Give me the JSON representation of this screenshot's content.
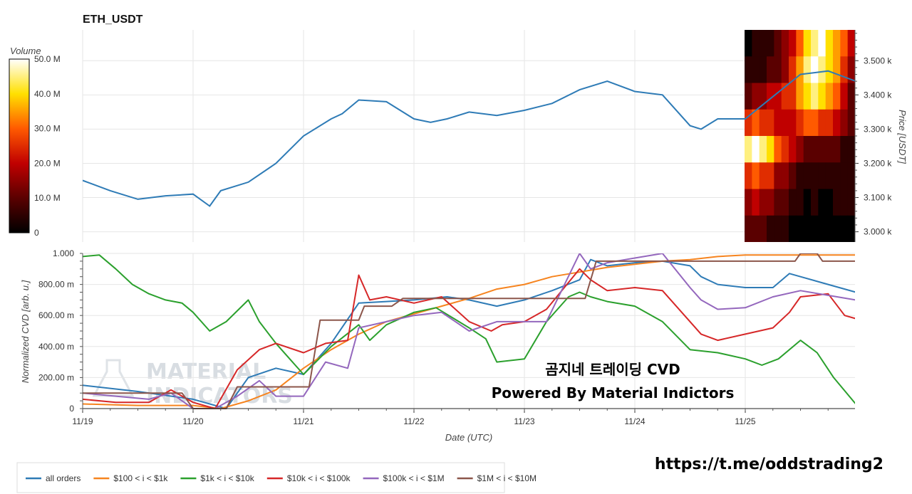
{
  "chart_data": [
    {
      "type": "line",
      "title": "ETH_USDT",
      "ylabel": "Price [USDT]",
      "ylim": [
        2970,
        3590
      ],
      "yticks": [
        "3.000 k",
        "3.100 k",
        "3.200 k",
        "3.300 k",
        "3.400 k",
        "3.500 k"
      ],
      "yticks_values": [
        3000,
        3100,
        3200,
        3300,
        3400,
        3500
      ],
      "xlim": [
        0,
        7
      ],
      "grid": true,
      "series": [
        {
          "color": "#2e7bb6",
          "x": [
            0,
            0.25,
            0.5,
            0.75,
            1,
            1.15,
            1.25,
            1.5,
            1.75,
            2,
            2.25,
            2.35,
            2.5,
            2.75,
            3,
            3.15,
            3.3,
            3.5,
            3.75,
            4,
            4.25,
            4.5,
            4.75,
            5,
            5.25,
            5.5,
            5.6,
            5.75,
            6,
            6.25,
            6.5,
            6.75,
            7
          ],
          "y": [
            3150,
            3120,
            3095,
            3105,
            3110,
            3075,
            3120,
            3145,
            3200,
            3280,
            3330,
            3345,
            3385,
            3380,
            3330,
            3320,
            3330,
            3350,
            3340,
            3355,
            3375,
            3415,
            3440,
            3410,
            3400,
            3310,
            3300,
            3330,
            3330,
            3395,
            3460,
            3470,
            3440
          ]
        }
      ]
    },
    {
      "type": "heatmap",
      "colorbar_label": "Volume",
      "colorbar_ticks": [
        "0",
        "10.0 M",
        "20.0 M",
        "30.0 M",
        "40.0 M",
        "50.0 M"
      ],
      "colorbar_values": [
        0,
        10,
        20,
        30,
        40,
        50
      ],
      "intensity": [
        [
          0.0,
          0.1,
          0.1,
          0.1,
          0.2,
          0.3,
          0.4,
          0.6,
          0.8,
          0.9,
          1.0,
          0.8,
          0.7,
          0.6,
          0.4
        ],
        [
          0.1,
          0.1,
          0.1,
          0.2,
          0.2,
          0.3,
          0.5,
          0.7,
          0.9,
          1.0,
          0.9,
          0.8,
          0.7,
          0.5,
          0.3
        ],
        [
          0.2,
          0.3,
          0.3,
          0.4,
          0.4,
          0.5,
          0.5,
          0.7,
          0.8,
          0.9,
          0.8,
          0.7,
          0.6,
          0.4,
          0.2
        ],
        [
          0.5,
          0.6,
          0.5,
          0.5,
          0.4,
          0.4,
          0.4,
          0.5,
          0.6,
          0.6,
          0.5,
          0.5,
          0.4,
          0.3,
          0.2
        ],
        [
          0.9,
          1.0,
          0.9,
          0.8,
          0.6,
          0.5,
          0.4,
          0.3,
          0.2,
          0.2,
          0.2,
          0.2,
          0.2,
          0.1,
          0.1
        ],
        [
          0.5,
          0.6,
          0.5,
          0.5,
          0.3,
          0.3,
          0.2,
          0.1,
          0.1,
          0.1,
          0.1,
          0.1,
          0.1,
          0.1,
          0.1
        ],
        [
          0.3,
          0.4,
          0.3,
          0.3,
          0.2,
          0.2,
          0.1,
          0.1,
          0.0,
          0.1,
          0.0,
          0.0,
          0.1,
          0.1,
          0.1
        ],
        [
          0.2,
          0.2,
          0.2,
          0.1,
          0.1,
          0.1,
          0.0,
          0.0,
          0.0,
          0.0,
          0.0,
          0.0,
          0.0,
          0.0,
          0.0
        ]
      ]
    },
    {
      "type": "line",
      "xlabel": "Date (UTC)",
      "ylabel": "Normalized CVD [arb. u.]",
      "ylim": [
        0,
        1000
      ],
      "yticks": [
        "0",
        "200.00 m",
        "400.00 m",
        "600.00 m",
        "800.00 m",
        "1.000"
      ],
      "yticks_values": [
        0,
        200,
        400,
        600,
        800,
        1000
      ],
      "categories": [
        "11/19",
        "11/20",
        "11/21",
        "11/22",
        "11/23",
        "11/24",
        "11/25"
      ],
      "xlim": [
        0,
        7
      ],
      "grid": true,
      "legend_position": "bottom-left",
      "series": [
        {
          "name": "all orders",
          "color": "#2e7bb6",
          "x": [
            0,
            0.5,
            1,
            1.3,
            1.5,
            1.75,
            2,
            2.25,
            2.5,
            2.75,
            3,
            3.3,
            3.5,
            3.75,
            4,
            4.25,
            4.5,
            4.6,
            4.75,
            5,
            5.25,
            5.5,
            5.6,
            5.75,
            6,
            6.25,
            6.4,
            6.5,
            6.75,
            7
          ],
          "y": [
            150,
            110,
            60,
            0,
            200,
            260,
            220,
            420,
            680,
            690,
            700,
            720,
            700,
            660,
            700,
            760,
            830,
            960,
            920,
            940,
            950,
            920,
            850,
            800,
            780,
            780,
            870,
            850,
            800,
            750
          ]
        },
        {
          "name": "$100 < i < $1k",
          "color": "#f6841f",
          "x": [
            0,
            0.5,
            1,
            1.25,
            1.5,
            1.75,
            2,
            2.25,
            2.5,
            2.75,
            3,
            3.25,
            3.5,
            3.75,
            4,
            4.25,
            4.5,
            4.75,
            5,
            5.25,
            5.5,
            5.75,
            6,
            6.5,
            7
          ],
          "y": [
            30,
            20,
            20,
            0,
            50,
            120,
            260,
            380,
            480,
            560,
            610,
            660,
            710,
            770,
            800,
            850,
            880,
            910,
            930,
            950,
            960,
            980,
            990,
            990,
            990
          ]
        },
        {
          "name": "$1k < i < $10k",
          "color": "#2ba02d",
          "x": [
            0,
            0.15,
            0.3,
            0.45,
            0.6,
            0.75,
            0.9,
            1.0,
            1.15,
            1.3,
            1.5,
            1.6,
            1.75,
            1.9,
            2.0,
            2.25,
            2.5,
            2.6,
            2.75,
            3.0,
            3.2,
            3.5,
            3.65,
            3.75,
            4.0,
            4.2,
            4.4,
            4.5,
            4.6,
            4.75,
            5.0,
            5.25,
            5.5,
            5.75,
            6.0,
            6.15,
            6.3,
            6.5,
            6.65,
            6.8,
            7.0
          ],
          "y": [
            980,
            990,
            900,
            800,
            740,
            700,
            680,
            620,
            500,
            560,
            700,
            560,
            420,
            300,
            220,
            400,
            540,
            440,
            540,
            620,
            650,
            520,
            450,
            300,
            320,
            560,
            720,
            750,
            720,
            690,
            660,
            560,
            380,
            360,
            320,
            280,
            320,
            440,
            360,
            200,
            30
          ]
        },
        {
          "name": "$10k < i < $100k",
          "color": "#d62728",
          "x": [
            0,
            0.3,
            0.6,
            0.8,
            1.0,
            1.2,
            1.4,
            1.6,
            1.75,
            2.0,
            2.2,
            2.4,
            2.5,
            2.6,
            2.75,
            3.0,
            3.25,
            3.5,
            3.7,
            3.8,
            4.0,
            4.2,
            4.5,
            4.6,
            4.75,
            5.0,
            5.25,
            5.5,
            5.6,
            5.75,
            6.0,
            6.25,
            6.4,
            6.5,
            6.75,
            6.9,
            7.0
          ],
          "y": [
            60,
            40,
            40,
            120,
            40,
            0,
            250,
            380,
            420,
            360,
            420,
            440,
            860,
            700,
            720,
            680,
            720,
            560,
            500,
            540,
            560,
            640,
            900,
            830,
            760,
            780,
            760,
            560,
            480,
            440,
            480,
            520,
            620,
            720,
            740,
            600,
            580
          ]
        },
        {
          "name": "$100k < i < $1M",
          "color": "#9467bd",
          "x": [
            0,
            0.3,
            0.6,
            0.8,
            1.0,
            1.2,
            1.4,
            1.6,
            1.75,
            2.0,
            2.2,
            2.4,
            2.5,
            2.75,
            3.0,
            3.25,
            3.5,
            3.75,
            4.0,
            4.2,
            4.5,
            4.6,
            4.75,
            5.0,
            5.25,
            5.5,
            5.6,
            5.75,
            6.0,
            6.25,
            6.5,
            6.75,
            7.0
          ],
          "y": [
            100,
            80,
            60,
            100,
            0,
            0,
            80,
            180,
            80,
            80,
            300,
            260,
            520,
            560,
            600,
            620,
            500,
            560,
            560,
            560,
            1000,
            900,
            940,
            970,
            1000,
            780,
            700,
            640,
            650,
            720,
            760,
            730,
            700
          ]
        },
        {
          "name": "$1M < i < $10M",
          "color": "#8c564b",
          "x": [
            0,
            0.5,
            0.9,
            1.0,
            1.3,
            1.4,
            2.05,
            2.15,
            2.5,
            2.55,
            2.8,
            2.9,
            4.55,
            4.65,
            6.45,
            6.5,
            6.65,
            6.7,
            7.0
          ],
          "y": [
            100,
            100,
            100,
            0,
            0,
            140,
            140,
            570,
            570,
            660,
            660,
            710,
            710,
            950,
            950,
            1000,
            1000,
            950,
            950
          ]
        }
      ]
    }
  ],
  "watermark": {
    "line1": "MATERIAL",
    "line2": "INDICATORS"
  },
  "overlay_text": {
    "line1": "곰지네 트레이딩 CVD",
    "line2": "Powered By Material Indictors"
  },
  "footer_url": "https://t.me/oddstrading2",
  "colors": {
    "background": "#ffffff",
    "grid": "#e6e6e6"
  }
}
